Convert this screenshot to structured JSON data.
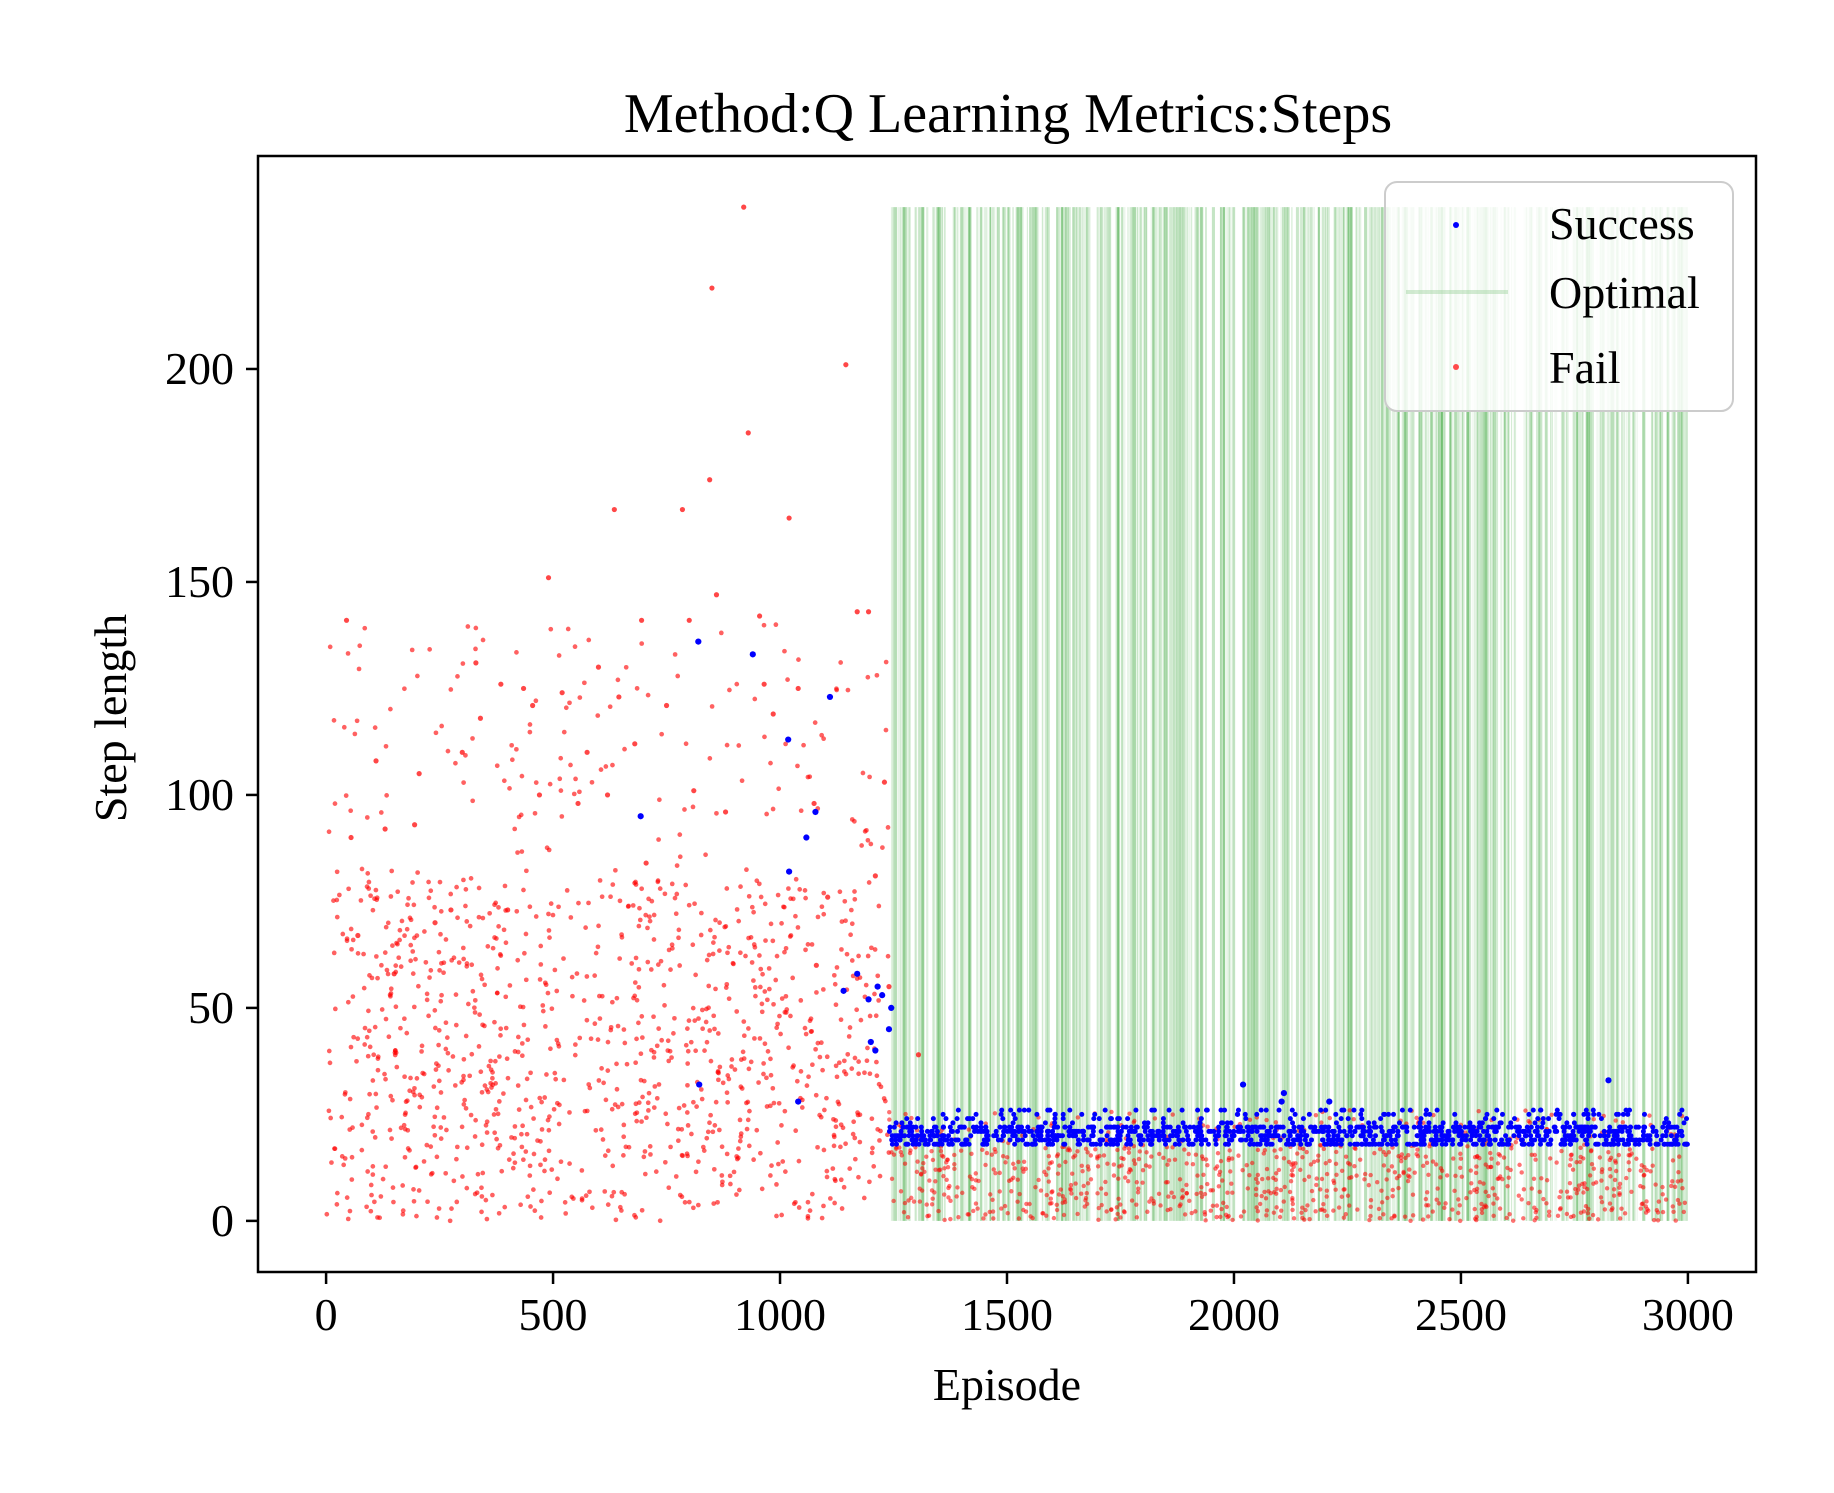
{
  "chart_data": {
    "type": "scatter",
    "title": "Method:Q Learning   Metrics:Steps",
    "xlabel": "Episode",
    "ylabel": "Step length",
    "xlim": [
      -150,
      3150
    ],
    "ylim": [
      -12,
      250
    ],
    "xticks": [
      0,
      500,
      1000,
      1500,
      2000,
      2500,
      3000
    ],
    "yticks": [
      0,
      50,
      100,
      150,
      200
    ],
    "grid": false,
    "legend_position": "top-right",
    "series": [
      {
        "name": "Success",
        "color": "#0000ff",
        "marker": "dot",
        "points": [
          [
            693,
            95
          ],
          [
            820,
            136
          ],
          [
            822,
            32
          ],
          [
            940,
            133
          ],
          [
            1018,
            113
          ],
          [
            1020,
            82
          ],
          [
            1040,
            28
          ],
          [
            1058,
            90
          ],
          [
            1078,
            96
          ],
          [
            1110,
            123
          ],
          [
            1140,
            54
          ],
          [
            1170,
            58
          ],
          [
            1195,
            52
          ],
          [
            1200,
            42
          ],
          [
            1210,
            40
          ],
          [
            1215,
            55
          ],
          [
            1225,
            53
          ],
          [
            1240,
            45
          ],
          [
            1245,
            50
          ],
          [
            2020,
            32
          ],
          [
            2105,
            28
          ],
          [
            2110,
            30
          ],
          [
            2210,
            28
          ],
          [
            2825,
            33
          ]
        ],
        "baseline_band": {
          "x_range": [
            1240,
            3000
          ],
          "y_min": 18,
          "y_max": 26,
          "dominant_values": [
            18,
            19,
            20,
            21,
            22
          ]
        }
      },
      {
        "name": "Optimal",
        "color": "#2ca02c",
        "marker": "vline",
        "x_range": [
          1240,
          3000
        ],
        "y_range": [
          0,
          238
        ],
        "note_density": "high"
      },
      {
        "name": "Fail",
        "color": "#ff0000",
        "marker": "dot",
        "points": [
          [
            45,
            141
          ],
          [
            55,
            90
          ],
          [
            70,
            67
          ],
          [
            110,
            108
          ],
          [
            130,
            92
          ],
          [
            150,
            58
          ],
          [
            195,
            93
          ],
          [
            205,
            105
          ],
          [
            240,
            70
          ],
          [
            275,
            73
          ],
          [
            300,
            110
          ],
          [
            330,
            131
          ],
          [
            340,
            118
          ],
          [
            385,
            126
          ],
          [
            400,
            73
          ],
          [
            435,
            125
          ],
          [
            455,
            121
          ],
          [
            470,
            100
          ],
          [
            490,
            151
          ],
          [
            520,
            124
          ],
          [
            555,
            98
          ],
          [
            575,
            110
          ],
          [
            600,
            130
          ],
          [
            620,
            100
          ],
          [
            635,
            167
          ],
          [
            645,
            123
          ],
          [
            680,
            112
          ],
          [
            695,
            141
          ],
          [
            705,
            84
          ],
          [
            750,
            121
          ],
          [
            785,
            167
          ],
          [
            800,
            141
          ],
          [
            810,
            101
          ],
          [
            845,
            174
          ],
          [
            850,
            219
          ],
          [
            860,
            147
          ],
          [
            880,
            96
          ],
          [
            920,
            238
          ],
          [
            930,
            185
          ],
          [
            955,
            142
          ],
          [
            965,
            126
          ],
          [
            985,
            119
          ],
          [
            1020,
            165
          ],
          [
            1040,
            125
          ],
          [
            1075,
            98
          ],
          [
            1080,
            60
          ],
          [
            1105,
            76
          ],
          [
            1145,
            201
          ],
          [
            1170,
            143
          ],
          [
            1195,
            143
          ],
          [
            1210,
            81
          ],
          [
            1230,
            103
          ],
          [
            1240,
            55
          ],
          [
            1305,
            39
          ]
        ],
        "cluster_summary": {
          "x_range": [
            0,
            3000
          ],
          "y_range": [
            0,
            140
          ],
          "density_peak_y": [
            0,
            45
          ]
        }
      }
    ]
  }
}
